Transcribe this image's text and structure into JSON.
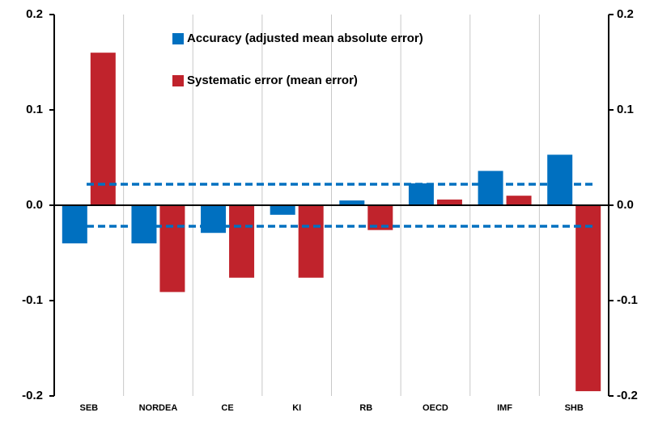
{
  "chart_data": {
    "type": "bar",
    "categories": [
      "SEB",
      "NORDEA",
      "CE",
      "KI",
      "RB",
      "OECD",
      "IMF",
      "SHB"
    ],
    "series": [
      {
        "name": "Accuracy (adjusted mean absolute error)",
        "color": "#0070c0",
        "values": [
          -0.04,
          -0.04,
          -0.029,
          -0.01,
          0.005,
          0.023,
          0.036,
          0.053
        ]
      },
      {
        "name": "Systematic error (mean error)",
        "color": "#c0232c",
        "values": [
          0.16,
          -0.091,
          -0.076,
          -0.076,
          -0.026,
          0.006,
          0.01,
          -0.195
        ]
      }
    ],
    "reference_lines": [
      0.022,
      -0.022
    ],
    "reference_color": "#0070c0",
    "ylim": [
      -0.2,
      0.2
    ],
    "yticks": [
      -0.2,
      -0.1,
      {
        "value": 0,
        "label": "0.0"
      },
      0.1,
      0.2
    ],
    "y2lim": [
      -0.2,
      0.2
    ],
    "y2ticks": [
      -0.2,
      -0.1,
      {
        "value": 0,
        "label": "0.0"
      },
      0.1,
      0.2
    ],
    "grid": true,
    "legend": "top-center"
  }
}
